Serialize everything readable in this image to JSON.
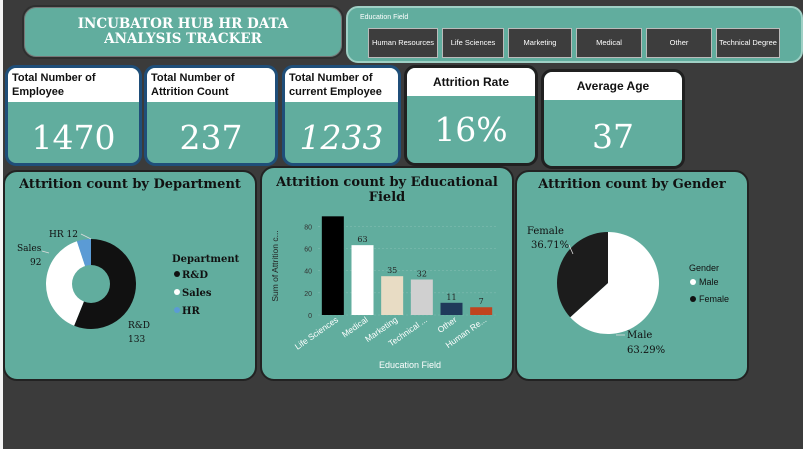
{
  "title": "INCUBATOR HUB HR DATA ANALYSIS TRACKER",
  "slicer": {
    "title": "Education Field",
    "options": [
      "Human Resources",
      "Life Sciences",
      "Marketing",
      "Medical",
      "Other",
      "Technical Degree"
    ]
  },
  "kpis": [
    {
      "label": "Total Number of Employee",
      "value": "1470"
    },
    {
      "label": "Total Number of Attrition Count",
      "value": "237"
    },
    {
      "label": "Total Number of current Employee",
      "value": "1233"
    },
    {
      "label": "Attrition Rate",
      "value": "16%"
    },
    {
      "label": "Average Age",
      "value": "37"
    }
  ],
  "chart_data": [
    {
      "type": "pie",
      "title": "Attrition count by Department",
      "legend_title": "Department",
      "legend_position": "right",
      "categories": [
        "R&D",
        "Sales",
        "HR"
      ],
      "values": [
        133,
        92,
        12
      ],
      "colors": [
        "#111111",
        "#ffffff",
        "#5b9bd5"
      ]
    },
    {
      "type": "bar",
      "title": "Attrition count by Educational Field",
      "xlabel": "Education Field",
      "ylabel": "Sum of Attrition c...",
      "categories": [
        "Life Sciences",
        "Medical",
        "Marketing",
        "Technical ...",
        "Other",
        "Human Re..."
      ],
      "values": [
        89,
        63,
        35,
        32,
        11,
        7
      ],
      "data_labels": [
        "",
        "63",
        "35",
        "32",
        "11",
        "7"
      ],
      "colors": [
        "#000000",
        "#ffffff",
        "#e8dcc4",
        "#d0d0d0",
        "#1f3a5a",
        "#c0441f"
      ],
      "yticks": [
        0,
        20,
        40,
        60,
        80
      ],
      "ylim": [
        0,
        92
      ],
      "grid": true
    },
    {
      "type": "pie",
      "title": "Attrition count by Gender",
      "legend_title": "Gender",
      "legend_position": "right",
      "categories": [
        "Male",
        "Female"
      ],
      "values": [
        63.29,
        36.71
      ],
      "slice_labels": [
        "63.29%",
        "36.71%"
      ],
      "colors": [
        "#ffffff",
        "#1c1c1c"
      ]
    }
  ]
}
